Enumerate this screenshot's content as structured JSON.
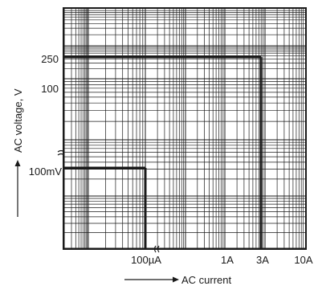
{
  "chart_data": {
    "type": "line",
    "title": "",
    "xlabel": "AC current",
    "ylabel": "AC voltage, V",
    "x_scale": "log (broken axis)",
    "y_scale": "log (broken axis)",
    "grid": true,
    "x_ticks": [
      "100µA",
      "1A",
      "3A",
      "10A"
    ],
    "y_ticks": [
      "250",
      "100",
      "100mV"
    ],
    "series": [
      {
        "points": [
          {
            "x": "100µA",
            "y": "100mV"
          },
          {
            "x": "100µA",
            "y": "0"
          }
        ]
      },
      {
        "points": [
          {
            "x": "0",
            "y": "100mV"
          },
          {
            "x": "100µA",
            "y": "100mV"
          }
        ]
      },
      {
        "points": [
          {
            "x": "0",
            "y": "250"
          },
          {
            "x": "3A",
            "y": "250"
          }
        ]
      },
      {
        "points": [
          {
            "x": "3A",
            "y": "250"
          },
          {
            "x": "3A",
            "y": "0"
          }
        ]
      }
    ]
  }
}
